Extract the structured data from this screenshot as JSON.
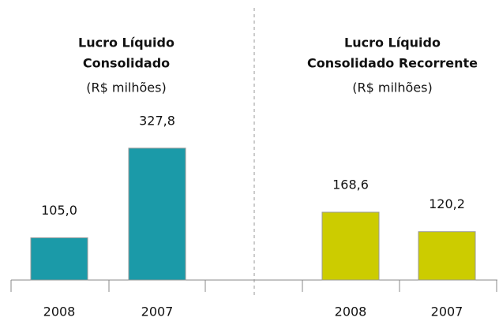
{
  "chart_data": [
    {
      "type": "bar",
      "title": [
        "Lucro Líquido",
        "Consolidado"
      ],
      "subtitle": "(R$ milhões)",
      "categories": [
        "2008",
        "2007"
      ],
      "values": [
        105.0,
        327.8
      ],
      "value_labels": [
        "105,0",
        "327,8"
      ],
      "color": "#1b9aa8"
    },
    {
      "type": "bar",
      "title": [
        "Lucro Líquido",
        "Consolidado Recorrente"
      ],
      "subtitle": "(R$ milhões)",
      "categories": [
        "2008",
        "2007"
      ],
      "values": [
        168.6,
        120.2
      ],
      "value_labels": [
        "168,6",
        "120,2"
      ],
      "color": "#cccc00"
    }
  ]
}
